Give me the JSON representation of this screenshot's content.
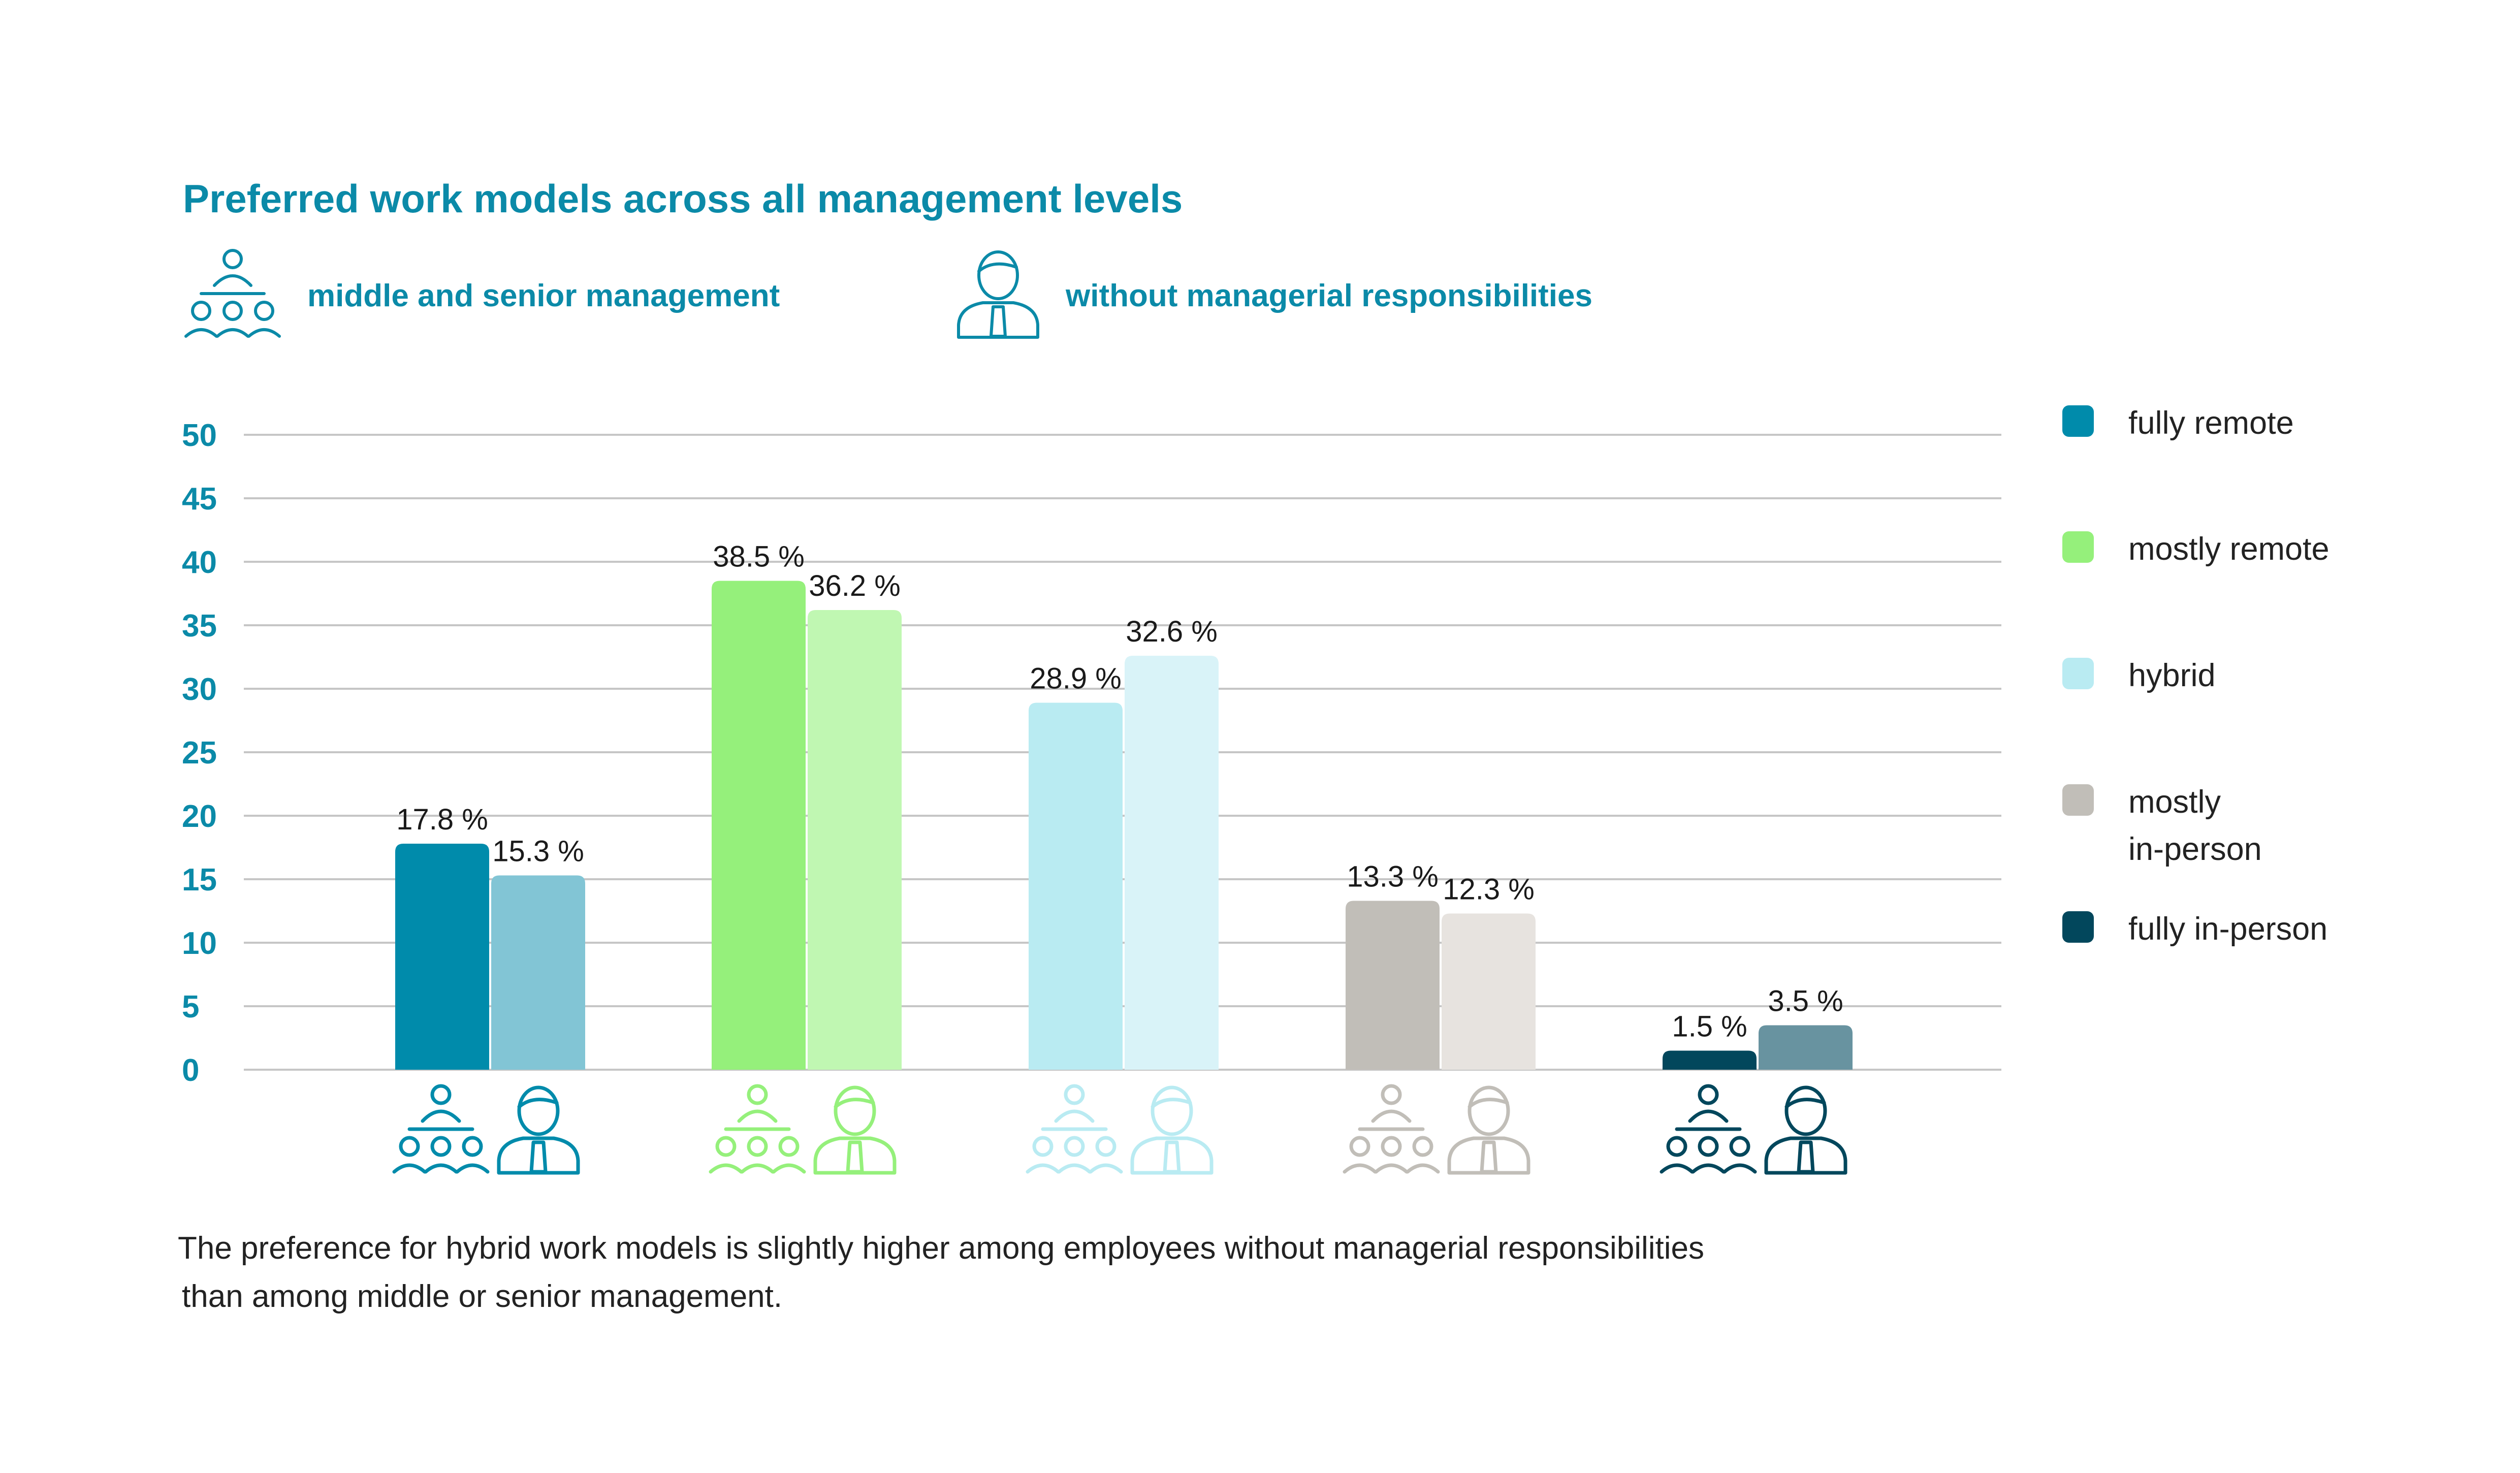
{
  "chart_data": {
    "type": "bar",
    "title": "Preferred work models across all management levels",
    "groups": [
      {
        "name": "middle and senior management",
        "icon": "team-hierarchy-icon"
      },
      {
        "name": "without managerial responsibilities",
        "icon": "employee-icon"
      }
    ],
    "categories": [
      "fully remote",
      "mostly remote",
      "hybrid",
      "mostly in-person",
      "fully in-person"
    ],
    "legend_lines": [
      [
        "fully remote"
      ],
      [
        "mostly remote"
      ],
      [
        "hybrid"
      ],
      [
        "mostly",
        "in-person"
      ],
      [
        "fully in-person"
      ]
    ],
    "series": [
      {
        "group": "middle and senior management",
        "values": [
          17.8,
          38.5,
          28.9,
          13.3,
          1.5
        ]
      },
      {
        "group": "without managerial responsibilities",
        "values": [
          15.3,
          36.2,
          32.6,
          12.3,
          3.5
        ]
      }
    ],
    "value_labels": [
      [
        "17.8 %",
        "38.5 %",
        "28.9 %",
        "13.3 %",
        "1.5 %"
      ],
      [
        "15.3 %",
        "36.2 %",
        "32.6 %",
        "12.3 %",
        "3.5 %"
      ]
    ],
    "colors": {
      "management": [
        "#008bab",
        "#95f07b",
        "#b9ebf2",
        "#c1beb8",
        "#02475c"
      ],
      "no_management": [
        "#82c5d5",
        "#c0f7b2",
        "#d9f3f8",
        "#e7e3df",
        "#6893a0"
      ],
      "icons": [
        "#008bab",
        "#95f07b",
        "#b9ebf2",
        "#c1beb8",
        "#02475c"
      ],
      "title": "#0b8aa8",
      "axis": "#0b8aa8",
      "grid": "#c6c6c6"
    },
    "ylim": [
      0,
      50
    ],
    "yticks": [
      0,
      5,
      10,
      15,
      20,
      25,
      30,
      35,
      40,
      45,
      50
    ],
    "grid": true,
    "legend_position": "right",
    "footnote": [
      "The preference for hybrid work models is slightly higher among employees without managerial responsibilities",
      "than among middle or senior management."
    ]
  }
}
